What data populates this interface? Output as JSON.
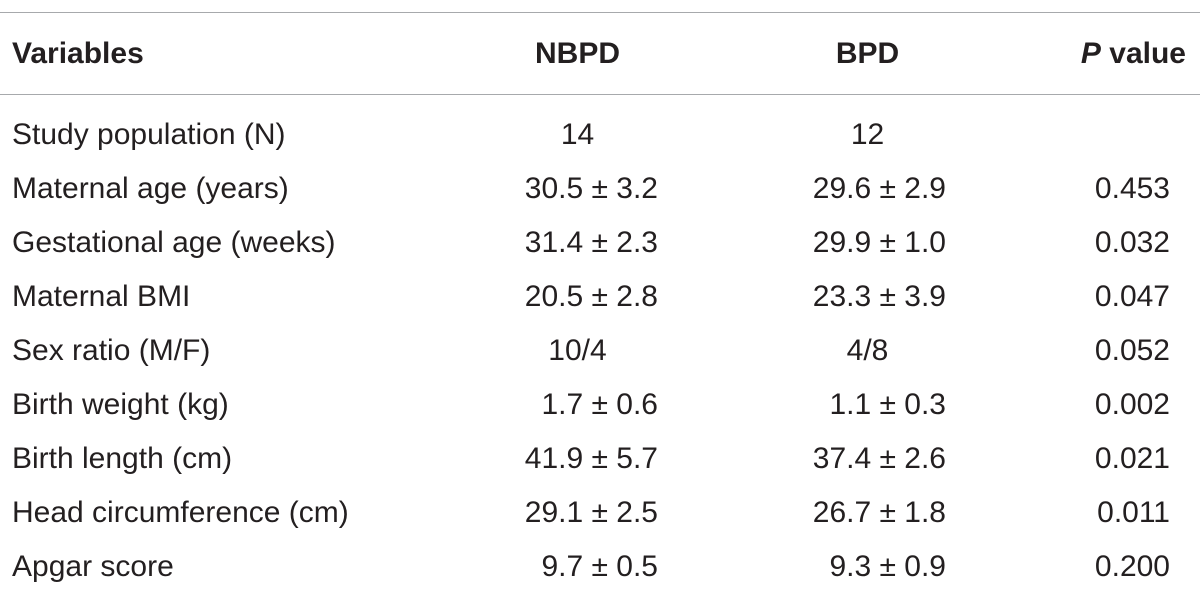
{
  "header": {
    "variables": "Variables",
    "nbpd": "NBPD",
    "bpd": "BPD",
    "p_italic": "P",
    "p_rest": " value"
  },
  "rows": [
    {
      "variable": "Study population (N)",
      "nbpd": "14",
      "bpd": "12",
      "p": ""
    },
    {
      "variable": "Maternal age (years)",
      "nbpd": "30.5 ± 3.2",
      "bpd": "29.6 ± 2.9",
      "p": "0.453"
    },
    {
      "variable": "Gestational age (weeks)",
      "nbpd": "31.4 ± 2.3",
      "bpd": "29.9 ± 1.0",
      "p": "0.032"
    },
    {
      "variable": "Maternal BMI",
      "nbpd": "20.5 ± 2.8",
      "bpd": "23.3 ± 3.9",
      "p": "0.047"
    },
    {
      "variable": "Sex ratio (M/F)",
      "nbpd": "10/4",
      "bpd": "4/8",
      "p": "0.052"
    },
    {
      "variable": "Birth weight (kg)",
      "nbpd": "1.7 ± 0.6",
      "bpd": "1.1 ± 0.3",
      "p": "0.002"
    },
    {
      "variable": "Birth length (cm)",
      "nbpd": "41.9 ± 5.7",
      "bpd": "37.4 ± 2.6",
      "p": "0.021"
    },
    {
      "variable": "Head circumference (cm)",
      "nbpd": "29.1 ± 2.5",
      "bpd": "26.7 ± 1.8",
      "p": "0.011"
    },
    {
      "variable": "Apgar score",
      "nbpd": "9.7 ± 0.5",
      "bpd": "9.3 ± 0.9",
      "p": "0.200"
    }
  ]
}
